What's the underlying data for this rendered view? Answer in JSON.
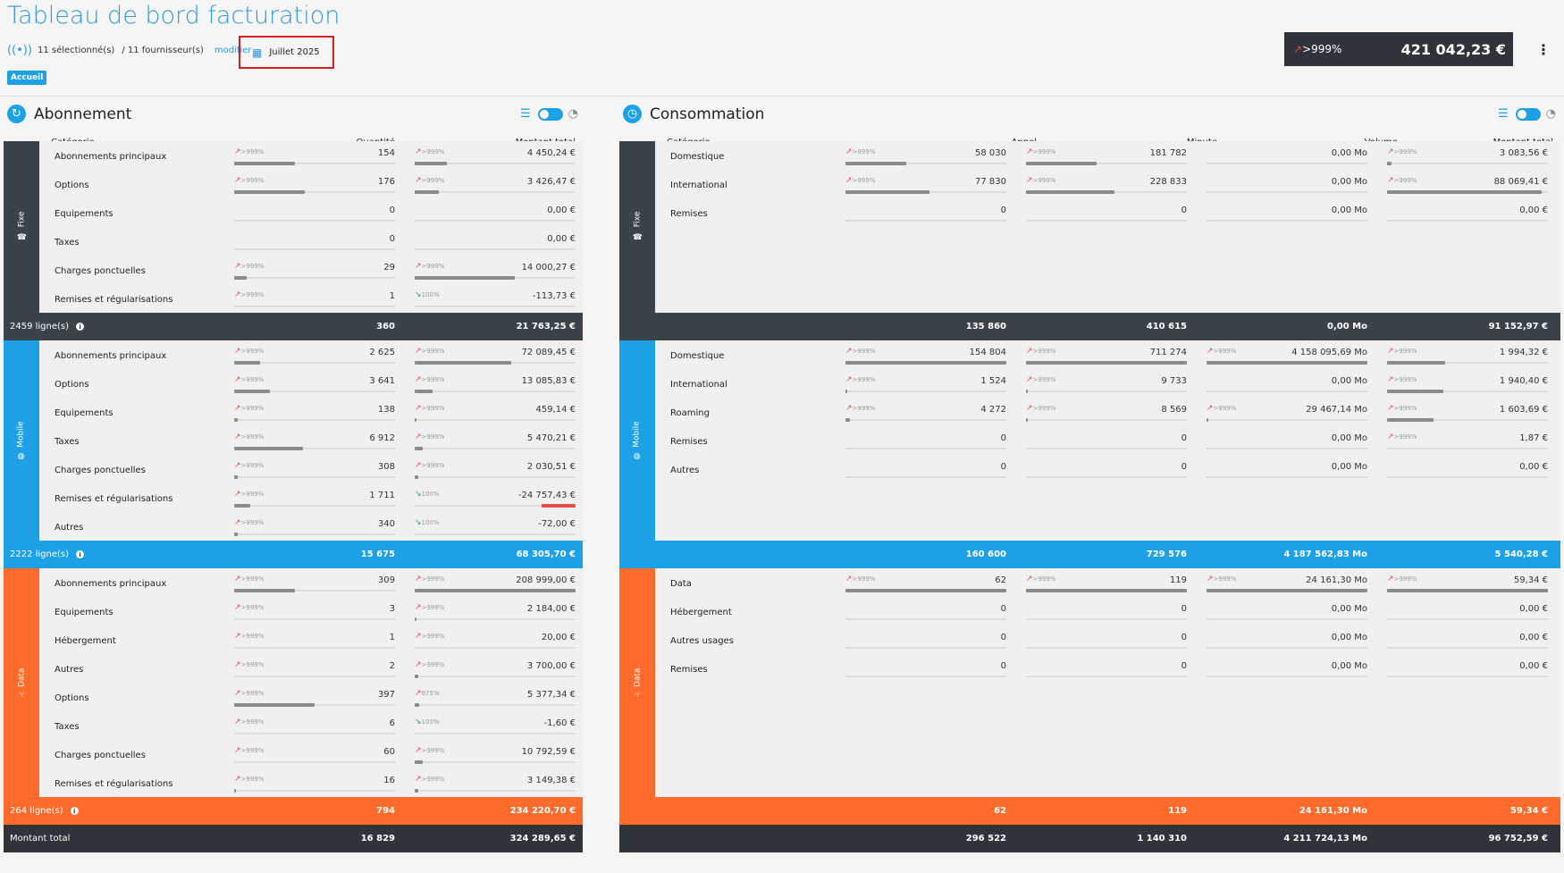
{
  "header": {
    "title": "Tableau de bord facturation",
    "selected": "11 sélectionné(s)",
    "suppliers": "/ 11 fournisseur(s)",
    "modify": "modifier",
    "date": "Juillet 2025",
    "breadcrumb": "Accueil",
    "trend": ">999%",
    "total": "421 042,23 €"
  },
  "abonnement": {
    "title": "Abonnement",
    "columns": [
      "Catégorie",
      "Quantité",
      "Montant total"
    ],
    "sections": [
      {
        "name": "Fixe",
        "color": "#3b434a",
        "rows": [
          {
            "label": "Abonnements principaux",
            "q": "154",
            "qt": ">999%",
            "qf": 0.38,
            "m": "4 450,24 €",
            "mt": ">999%",
            "mf": 0.2
          },
          {
            "label": "Options",
            "q": "176",
            "qt": ">999%",
            "qf": 0.44,
            "m": "3 426,47 €",
            "mt": ">999%",
            "mf": 0.15
          },
          {
            "label": "Equipements",
            "q": "0",
            "qt": "",
            "qf": 0,
            "m": "0,00 €",
            "mt": "",
            "mf": 0
          },
          {
            "label": "Taxes",
            "q": "0",
            "qt": "",
            "qf": 0,
            "m": "0,00 €",
            "mt": "",
            "mf": 0
          },
          {
            "label": "Charges ponctuelles",
            "q": "29",
            "qt": ">999%",
            "qf": 0.08,
            "m": "14 000,27 €",
            "mt": ">999%",
            "mf": 0.62
          },
          {
            "label": "Remises et régularisations",
            "q": "1",
            "qt": ">999%",
            "qf": 0.0,
            "m": "-113,73 €",
            "mt": "100%",
            "mf": 0,
            "down": true
          }
        ],
        "footer_lines": "2459 ligne(s)",
        "footer_q": "360",
        "footer_m": "21 763,25 €"
      },
      {
        "name": "Mobile",
        "color": "#1da1e6",
        "rows": [
          {
            "label": "Abonnements principaux",
            "q": "2 625",
            "qt": ">999%",
            "qf": 0.16,
            "m": "72 089,45 €",
            "mt": ">999%",
            "mf": 0.6
          },
          {
            "label": "Options",
            "q": "3 641",
            "qt": ">999%",
            "qf": 0.22,
            "m": "13 085,83 €",
            "mt": ">999%",
            "mf": 0.11
          },
          {
            "label": "Equipements",
            "q": "138",
            "qt": ">999%",
            "qf": 0.02,
            "m": "459,14 €",
            "mt": ">999%",
            "mf": 0.01
          },
          {
            "label": "Taxes",
            "q": "6 912",
            "qt": ">999%",
            "qf": 0.43,
            "m": "5 470,21 €",
            "mt": ">999%",
            "mf": 0.05
          },
          {
            "label": "Charges ponctuelles",
            "q": "308",
            "qt": ">999%",
            "qf": 0.02,
            "m": "2 030,51 €",
            "mt": ">999%",
            "mf": 0.02
          },
          {
            "label": "Remises et régularisations",
            "q": "1 711",
            "qt": ">999%",
            "qf": 0.1,
            "m": "-24 757,43 €",
            "mt": "100%",
            "mf": 0.21,
            "down": true,
            "neg": true
          },
          {
            "label": "Autres",
            "q": "340",
            "qt": ">999%",
            "qf": 0.02,
            "m": "-72,00 €",
            "mt": "100%",
            "mf": 0,
            "down": true
          }
        ],
        "footer_lines": "2222 ligne(s)",
        "footer_q": "15 675",
        "footer_m": "68 305,70 €"
      },
      {
        "name": "Data",
        "color": "#ff6b2b",
        "rows": [
          {
            "label": "Abonnements principaux",
            "q": "309",
            "qt": ">999%",
            "qf": 0.38,
            "m": "208 999,00 €",
            "mt": ">999%",
            "mf": 1.0
          },
          {
            "label": "Equipements",
            "q": "3",
            "qt": ">999%",
            "qf": 0.0,
            "m": "2 184,00 €",
            "mt": ">999%",
            "mf": 0.01
          },
          {
            "label": "Hébergement",
            "q": "1",
            "qt": ">999%",
            "qf": 0.0,
            "m": "20,00 €",
            "mt": ">999%",
            "mf": 0
          },
          {
            "label": "Autres",
            "q": "2",
            "qt": ">999%",
            "qf": 0.0,
            "m": "3 700,00 €",
            "mt": ">999%",
            "mf": 0.02
          },
          {
            "label": "Options",
            "q": "397",
            "qt": ">999%",
            "qf": 0.5,
            "m": "5 377,34 €",
            "mt": "975%",
            "mf": 0.03
          },
          {
            "label": "Taxes",
            "q": "6",
            "qt": ">999%",
            "qf": 0.0,
            "m": "-1,60 €",
            "mt": "100%",
            "mf": 0,
            "down": true
          },
          {
            "label": "Charges ponctuelles",
            "q": "60",
            "qt": ">999%",
            "qf": 0.0,
            "m": "10 792,59 €",
            "mt": ">999%",
            "mf": 0.05
          },
          {
            "label": "Remises et régularisations",
            "q": "16",
            "qt": ">999%",
            "qf": 0.01,
            "m": "3 149,38 €",
            "mt": ">999%",
            "mf": 0.02
          }
        ],
        "footer_lines": "264 ligne(s)",
        "footer_q": "794",
        "footer_m": "234 220,70 €"
      }
    ],
    "total_label": "Montant total",
    "total_q": "16 829",
    "total_m": "324 289,65 €"
  },
  "consommation": {
    "title": "Consommation",
    "columns": [
      "Catégorie",
      "Appel",
      "Minute",
      "Volume",
      "Montant total"
    ],
    "sections": [
      {
        "name": "Fixe",
        "rows": [
          {
            "label": "Domestique",
            "a": "58 030",
            "at": ">999%",
            "af": 0.38,
            "mi": "181 782",
            "mit": ">999%",
            "mif": 0.44,
            "v": "0,00 Mo",
            "vt": "",
            "vf": 0,
            "m": "3 083,56 €",
            "mt": ">999%",
            "mf": 0.03
          },
          {
            "label": "International",
            "a": "77 830",
            "at": ">999%",
            "af": 0.52,
            "mi": "228 833",
            "mit": ">999%",
            "mif": 0.55,
            "v": "0,00 Mo",
            "vt": "",
            "vf": 0,
            "m": "88 069,41 €",
            "mt": ">999%",
            "mf": 0.96
          },
          {
            "label": "Remises",
            "a": "0",
            "at": "",
            "af": 0,
            "mi": "0",
            "mit": "",
            "mif": 0,
            "v": "0,00 Mo",
            "vt": "",
            "vf": 0,
            "m": "0,00 €",
            "mt": "",
            "mf": 0
          }
        ],
        "footer_a": "135 860",
        "footer_mi": "410 615",
        "footer_v": "0,00 Mo",
        "footer_m": "91 152,97 €"
      },
      {
        "name": "Mobile",
        "rows": [
          {
            "label": "Domestique",
            "a": "154 804",
            "at": ">999%",
            "af": 1.0,
            "mi": "711 274",
            "mit": ">999%",
            "mif": 1.0,
            "v": "4 158 095,69 Mo",
            "vt": ">999%",
            "vf": 1.0,
            "m": "1 994,32 €",
            "mt": ">999%",
            "mf": 0.36
          },
          {
            "label": "International",
            "a": "1 524",
            "at": ">999%",
            "af": 0.01,
            "mi": "9 733",
            "mit": ">999%",
            "mif": 0.01,
            "v": "0,00 Mo",
            "vt": "",
            "vf": 0,
            "m": "1 940,40 €",
            "mt": ">999%",
            "mf": 0.35
          },
          {
            "label": "Roaming",
            "a": "4 272",
            "at": ">999%",
            "af": 0.03,
            "mi": "8 569",
            "mit": ">999%",
            "mif": 0.01,
            "v": "29 467,14 Mo",
            "vt": ">999%",
            "vf": 0.01,
            "m": "1 603,69 €",
            "mt": ">999%",
            "mf": 0.29
          },
          {
            "label": "Remises",
            "a": "0",
            "at": "",
            "af": 0,
            "mi": "0",
            "mit": "",
            "mif": 0,
            "v": "0,00 Mo",
            "vt": "",
            "vf": 0,
            "m": "1,87 €",
            "mt": ">999%",
            "mf": 0
          },
          {
            "label": "Autres",
            "a": "0",
            "at": "",
            "af": 0,
            "mi": "0",
            "mit": "",
            "mif": 0,
            "v": "0,00 Mo",
            "vt": "",
            "vf": 0,
            "m": "0,00 €",
            "mt": "",
            "mf": 0
          }
        ],
        "footer_a": "160 600",
        "footer_mi": "729 576",
        "footer_v": "4 187 562,83 Mo",
        "footer_m": "5 540,28 €"
      },
      {
        "name": "Data",
        "rows": [
          {
            "label": "Data",
            "a": "62",
            "at": ">999%",
            "af": 1.0,
            "mi": "119",
            "mit": ">999%",
            "mif": 1.0,
            "v": "24 161,30 Mo",
            "vt": ">999%",
            "vf": 1.0,
            "m": "59,34 €",
            "mt": ">999%",
            "mf": 1.0
          },
          {
            "label": "Hébergement",
            "a": "0",
            "at": "",
            "af": 0,
            "mi": "0",
            "mit": "",
            "mif": 0,
            "v": "0,00 Mo",
            "vt": "",
            "vf": 0,
            "m": "0,00 €",
            "mt": "",
            "mf": 0
          },
          {
            "label": "Autres usages",
            "a": "0",
            "at": "",
            "af": 0,
            "mi": "0",
            "mit": "",
            "mif": 0,
            "v": "0,00 Mo",
            "vt": "",
            "vf": 0,
            "m": "0,00 €",
            "mt": "",
            "mf": 0
          },
          {
            "label": "Remises",
            "a": "0",
            "at": "",
            "af": 0,
            "mi": "0",
            "mit": "",
            "mif": 0,
            "v": "0,00 Mo",
            "vt": "",
            "vf": 0,
            "m": "0,00 €",
            "mt": "",
            "mf": 0
          }
        ],
        "footer_a": "62",
        "footer_mi": "119",
        "footer_v": "24 161,30 Mo",
        "footer_m": "59,34 €"
      }
    ],
    "total_a": "296 522",
    "total_mi": "1 140 310",
    "total_v": "4 211 724,13 Mo",
    "total_m": "96 752,59 €"
  }
}
